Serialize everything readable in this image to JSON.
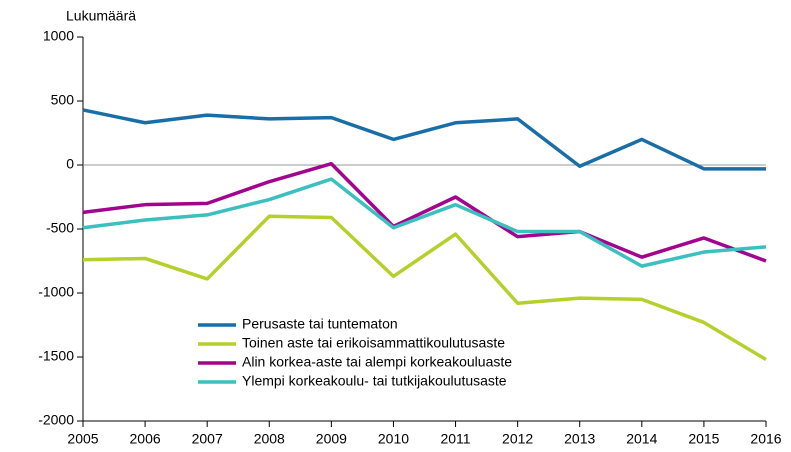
{
  "chart_data": {
    "type": "line",
    "y_label": "Lukumäärä",
    "x": [
      2005,
      2006,
      2007,
      2008,
      2009,
      2010,
      2011,
      2012,
      2013,
      2014,
      2015,
      2016
    ],
    "xlim": [
      2005,
      2016
    ],
    "xticks": [
      2005,
      2006,
      2007,
      2008,
      2009,
      2010,
      2011,
      2012,
      2013,
      2014,
      2015,
      2016
    ],
    "ylim": [
      -2000,
      1000
    ],
    "yticks": [
      -2000,
      -1500,
      -1000,
      -500,
      0,
      500,
      1000
    ],
    "legend": "lower center",
    "series": [
      {
        "name": "Perusaste tai tuntematon",
        "color": "#1a6ea8",
        "values": [
          430,
          330,
          390,
          360,
          370,
          200,
          330,
          360,
          -10,
          200,
          -30,
          -30
        ]
      },
      {
        "name": "Toinen aste tai erikoisammattikoulutusaste",
        "color": "#b5cf2b",
        "values": [
          -740,
          -730,
          -890,
          -400,
          -410,
          -870,
          -540,
          -1080,
          -1040,
          -1050,
          -1230,
          -1520
        ]
      },
      {
        "name": "Alin korkea-aste tai alempi korkeakouluaste",
        "color": "#a2038f",
        "values": [
          -370,
          -310,
          -300,
          -130,
          10,
          -480,
          -250,
          -560,
          -520,
          -720,
          -570,
          -750
        ]
      },
      {
        "name": "Ylempi korkeakoulu- tai tutkijakoulutusaste",
        "color": "#3cbfbf",
        "values": [
          -490,
          -430,
          -390,
          -270,
          -110,
          -490,
          -310,
          -520,
          -520,
          -790,
          -680,
          -640
        ]
      }
    ]
  }
}
